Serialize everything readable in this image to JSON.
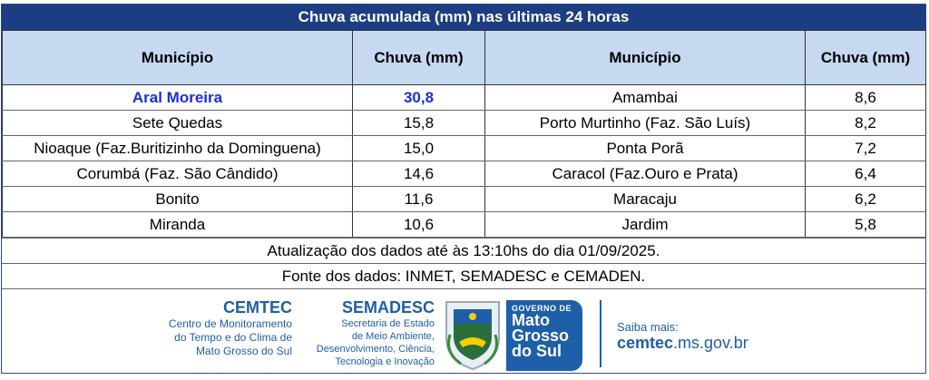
{
  "title": "Chuva acumulada (mm) nas últimas 24 horas",
  "headers": {
    "mun1": "Município",
    "chuva1": "Chuva (mm)",
    "mun2": "Município",
    "chuva2": "Chuva (mm)"
  },
  "rows": [
    {
      "m1": "Aral Moreira",
      "c1": "30,8",
      "m2": "Amambai",
      "c2": "8,6"
    },
    {
      "m1": "Sete Quedas",
      "c1": "15,8",
      "m2": "Porto Murtinho (Faz. São Luís)",
      "c2": "8,2"
    },
    {
      "m1": "Nioaque (Faz.Buritizinho da Dominguena)",
      "c1": "15,0",
      "m2": "Ponta Porã",
      "c2": "7,2"
    },
    {
      "m1": "Corumbá (Faz. São Cândido)",
      "c1": "14,6",
      "m2": "Caracol (Faz.Ouro e Prata)",
      "c2": "6,4"
    },
    {
      "m1": "Bonito",
      "c1": "11,6",
      "m2": "Maracaju",
      "c2": "6,2"
    },
    {
      "m1": "Miranda",
      "c1": "10,6",
      "m2": "Jardim",
      "c2": "5,8"
    }
  ],
  "update_note": "Atualização dos dados até às 13:10hs do dia 01/09/2025.",
  "source_note": "Fonte dos dados: INMET, SEMADESC e CEMADEN.",
  "footer": {
    "cemtec": {
      "brand": "CEMTEC",
      "l1": "Centro de Monitoramento",
      "l2": "do Tempo e do Clima de",
      "l3": "Mato Grosso do Sul"
    },
    "semadesc": {
      "brand": "SEMADESC",
      "l1": "Secretaria de Estado",
      "l2": "de Meio Ambiente,",
      "l3": "Desenvolvimento, Ciência,",
      "l4": "Tecnologia e Inovação"
    },
    "gov": {
      "small": "GOVERNO DE",
      "l1": "Mato",
      "l2": "Grosso",
      "l3": "do Sul"
    },
    "saiba": {
      "label": "Saiba mais:",
      "site_bold": "cemtec",
      "site_rest": ".ms.gov.br"
    }
  },
  "colors": {
    "header_bar": "#1d3d82",
    "col_header": "#c6d9f1",
    "highlight": "#1a2fd6",
    "brand_blue": "#1d5fa8"
  }
}
